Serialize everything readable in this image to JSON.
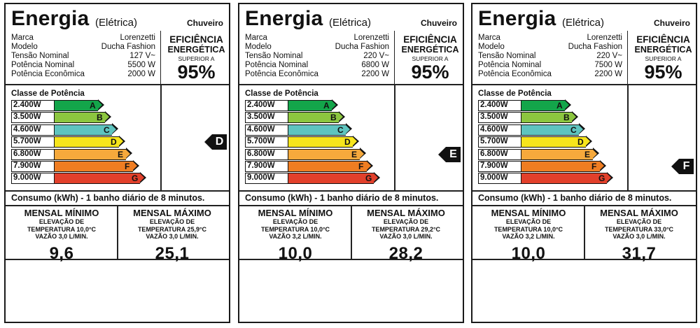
{
  "common": {
    "title": "Energia",
    "subtitle": "(Elétrica)",
    "product": "Chuveiro",
    "spec_keys": [
      "Marca",
      "Modelo",
      "Tensão Nominal",
      "Potência Nominal",
      "Potência Econômica"
    ],
    "eff_line1": "EFICIÊNCIA",
    "eff_line2": "ENERGÉTICA",
    "eff_line3": "SUPERIOR A",
    "eff_value": "95%",
    "class_title": "Classe de Potência",
    "classes": [
      {
        "watts": "2.400W",
        "letter": "A",
        "color": "#13a54a"
      },
      {
        "watts": "3.500W",
        "letter": "B",
        "color": "#8cc63f"
      },
      {
        "watts": "4.600W",
        "letter": "C",
        "color": "#5ec4bf"
      },
      {
        "watts": "5.700W",
        "letter": "D",
        "color": "#f7e51c"
      },
      {
        "watts": "6.800W",
        "letter": "E",
        "color": "#f6a93c"
      },
      {
        "watts": "7.900W",
        "letter": "F",
        "color": "#ef7d22"
      },
      {
        "watts": "9.000W",
        "letter": "G",
        "color": "#e2402b"
      }
    ],
    "consumo": "Consumo (kWh) - 1 banho diário de 8 minutos.",
    "min_heading": "MENSAL MÍNIMO",
    "max_heading": "MENSAL MÁXIMO",
    "elev_label": "ELEVAÇÃO DE"
  },
  "labels": [
    {
      "specs": [
        "Lorenzetti",
        "Ducha Fashion",
        "127 V~",
        "5500 W",
        "2000 W"
      ],
      "rating": "D",
      "min_temp": "TEMPERATURA 10,0°C",
      "min_flow": "VAZÃO 3,0 L/MIN.",
      "min_value": "9,6",
      "max_temp": "TEMPERATURA 25,9°C",
      "max_flow": "VAZÃO 3,0 L/MIN.",
      "max_value": "25,1"
    },
    {
      "specs": [
        "Lorenzetti",
        "Ducha Fashion",
        "220 V~",
        "6800 W",
        "2200 W"
      ],
      "rating": "E",
      "min_temp": "TEMPERATURA 10,0°C",
      "min_flow": "VAZÃO 3,2 L/MIN.",
      "min_value": "10,0",
      "max_temp": "TEMPERATURA 29,2°C",
      "max_flow": "VAZÃO 3,0 L/MIN.",
      "max_value": "28,2"
    },
    {
      "specs": [
        "Lorenzetti",
        "Ducha Fashion",
        "220 V~",
        "7500 W",
        "2200 W"
      ],
      "rating": "F",
      "min_temp": "TEMPERATURA 10,0°C",
      "min_flow": "VAZÃO 3,2 L/MIN.",
      "min_value": "10,0",
      "max_temp": "TEMPERATURA 33,0°C",
      "max_flow": "VAZÃO 3,0 L/MIN.",
      "max_value": "31,7"
    }
  ]
}
